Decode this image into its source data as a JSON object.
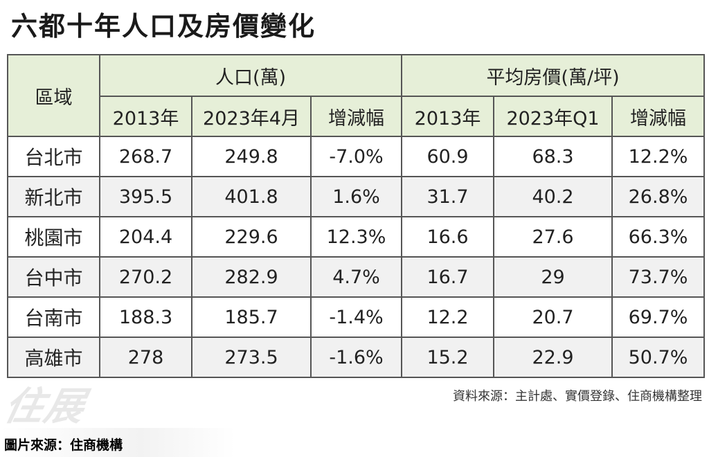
{
  "title": "六都十年人口及房價變化",
  "table": {
    "region_header": "區域",
    "group_population": "人口(萬)",
    "group_price": "平均房價(萬/坪)",
    "sub_headers": [
      "2013年",
      "2023年4月",
      "增減幅",
      "2013年",
      "2023年Q1",
      "增減幅"
    ],
    "rows": [
      {
        "region": "台北市",
        "pop_2013": "268.7",
        "pop_2023": "249.8",
        "pop_change": "-7.0%",
        "price_2013": "60.9",
        "price_2023": "68.3",
        "price_change": "12.2%"
      },
      {
        "region": "新北市",
        "pop_2013": "395.5",
        "pop_2023": "401.8",
        "pop_change": "1.6%",
        "price_2013": "31.7",
        "price_2023": "40.2",
        "price_change": "26.8%"
      },
      {
        "region": "桃園市",
        "pop_2013": "204.4",
        "pop_2023": "229.6",
        "pop_change": "12.3%",
        "price_2013": "16.6",
        "price_2023": "27.6",
        "price_change": "66.3%"
      },
      {
        "region": "台中市",
        "pop_2013": "270.2",
        "pop_2023": "282.9",
        "pop_change": "4.7%",
        "price_2013": "16.7",
        "price_2023": "29",
        "price_change": "73.7%"
      },
      {
        "region": "台南市",
        "pop_2013": "188.3",
        "pop_2023": "185.7",
        "pop_change": "-1.4%",
        "price_2013": "12.2",
        "price_2023": "20.7",
        "price_change": "69.7%"
      },
      {
        "region": "高雄市",
        "pop_2013": "278",
        "pop_2023": "273.5",
        "pop_change": "-1.6%",
        "price_2013": "15.2",
        "price_2023": "22.9",
        "price_change": "50.7%"
      }
    ]
  },
  "data_source": "資料來源：主計處、實價登錄、住商機構整理",
  "watermark": "住展",
  "image_credit": "圖片來源：住商機構",
  "colors": {
    "header_bg": "#e6efd8",
    "row_alt_bg": "#f1f1f1",
    "border": "#555555"
  }
}
